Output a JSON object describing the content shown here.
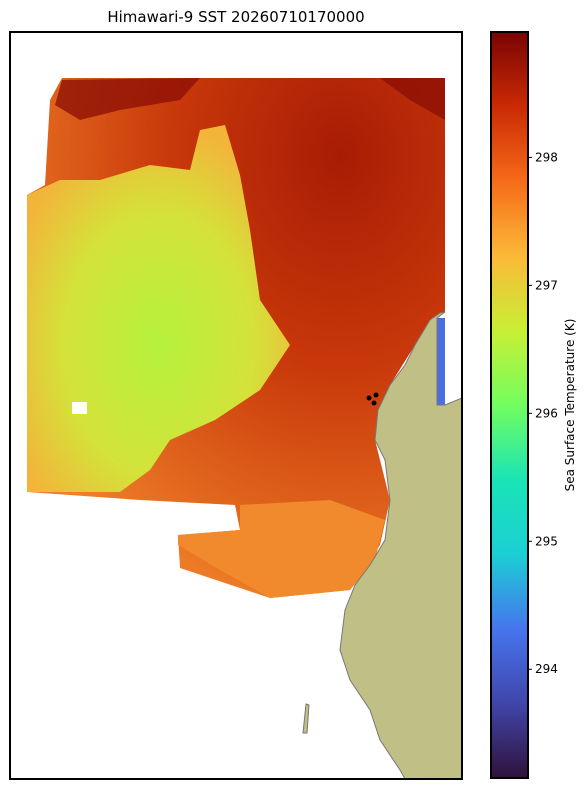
{
  "map": {
    "title": "Himawari-9 SST 20260710170000",
    "colorbar": {
      "label": "Sea Surface Temperature (K)",
      "colormap": "turbo",
      "lim": [
        293.15,
        298.98
      ],
      "ticks": [
        294,
        295,
        296,
        297,
        298
      ]
    }
  }
}
